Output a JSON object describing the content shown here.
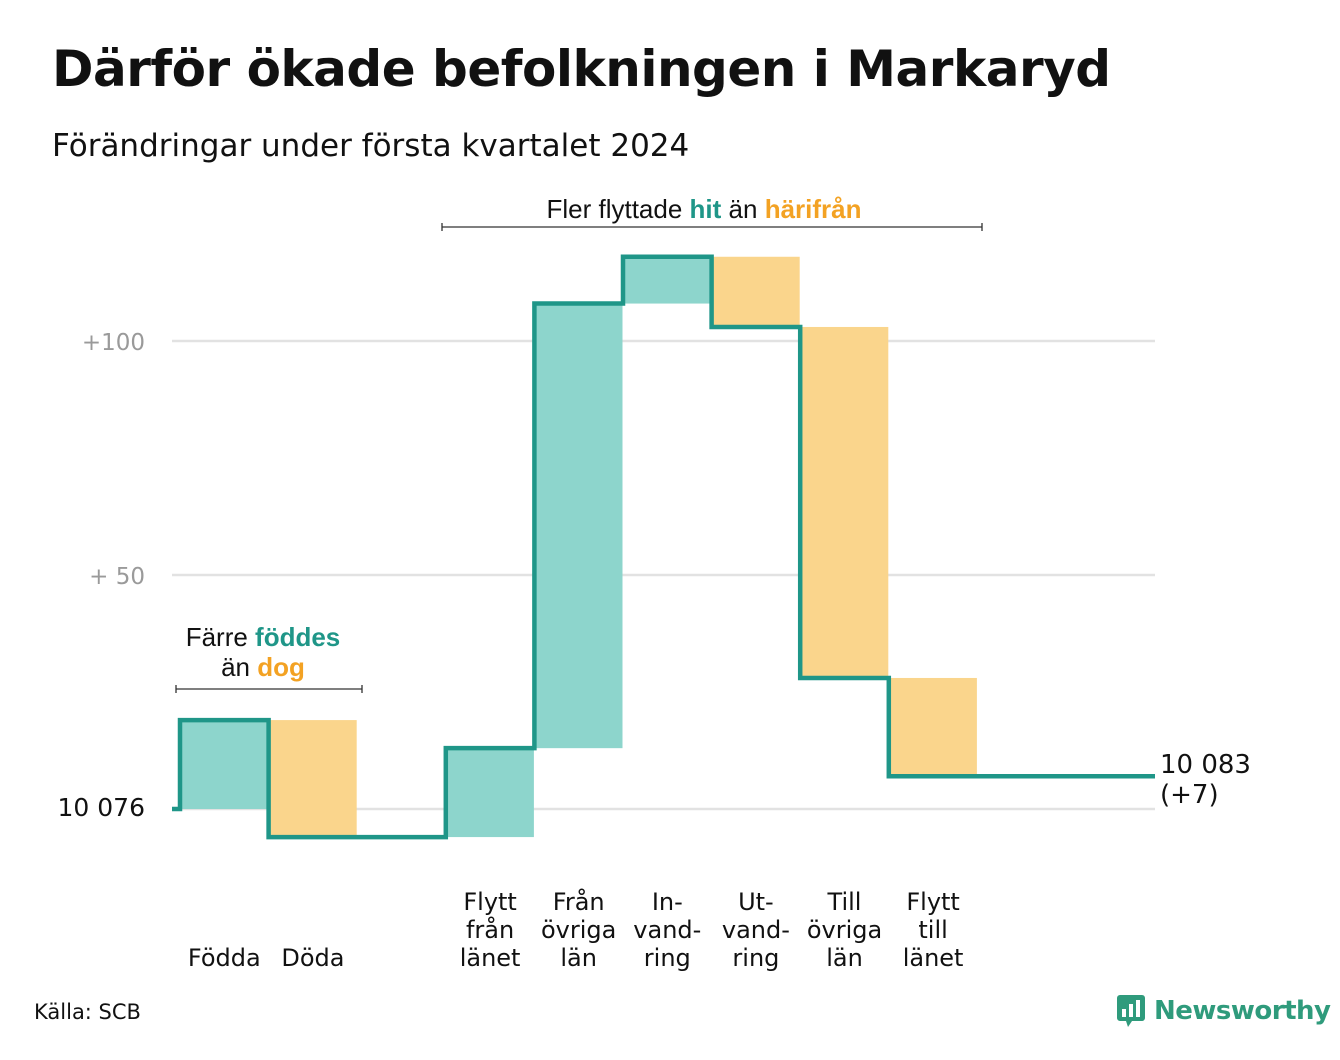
{
  "header": {
    "title": "Därför ökade befolkningen i Markaryd",
    "subtitle": "Förändringar under första kvartalet 2024"
  },
  "footer": {
    "source": "Källa: SCB",
    "brand": "Newsworthy"
  },
  "colors": {
    "increase": "#8dd5cc",
    "decrease": "#fad58c",
    "line": "#1f9688",
    "accent_teal": "#1f9688",
    "accent_orange": "#f3a223",
    "grid": "#e2e2e2",
    "tick_label": "#9a9a9a"
  },
  "chart_data": {
    "type": "waterfall",
    "baseline_label": "10  076",
    "yticks": [
      {
        "value": 100,
        "label": "+100"
      },
      {
        "value": 50,
        "label": "+  50"
      }
    ],
    "ylim": [
      -10,
      125
    ],
    "categories": [
      {
        "lines": [
          "Födda"
        ],
        "value": 19
      },
      {
        "lines": [
          "Döda"
        ],
        "value": -25
      },
      {
        "lines": [
          ""
        ],
        "value": 0
      },
      {
        "lines": [
          "Flytt",
          "från",
          "länet"
        ],
        "value": 19
      },
      {
        "lines": [
          "Från",
          "övriga",
          "län"
        ],
        "value": 95
      },
      {
        "lines": [
          "In-",
          "vand-",
          "ring"
        ],
        "value": 10
      },
      {
        "lines": [
          "Ut-",
          "vand-",
          "ring"
        ],
        "value": -15
      },
      {
        "lines": [
          "Till",
          "övriga",
          "län"
        ],
        "value": -75
      },
      {
        "lines": [
          "Flytt",
          "till",
          "länet"
        ],
        "value": -21
      }
    ],
    "final": {
      "value": 7,
      "label": "10 083",
      "change": "(+7)"
    },
    "annotations": [
      {
        "id": "births",
        "parts": [
          {
            "line": 0,
            "text": "Färre ",
            "style": "normal"
          },
          {
            "line": 0,
            "text": "föddes",
            "style": "teal"
          },
          {
            "line": 1,
            "text": "än ",
            "style": "normal"
          },
          {
            "line": 1,
            "text": "dog",
            "style": "orange"
          }
        ]
      },
      {
        "id": "moves",
        "parts": [
          {
            "line": 0,
            "text": "Fler flyttade ",
            "style": "normal"
          },
          {
            "line": 0,
            "text": "hit",
            "style": "teal"
          },
          {
            "line": 0,
            "text": " än ",
            "style": "normal"
          },
          {
            "line": 0,
            "text": "härifrån",
            "style": "orange"
          }
        ]
      }
    ]
  }
}
